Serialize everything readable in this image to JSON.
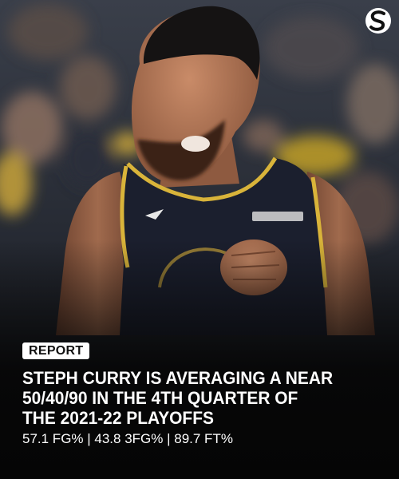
{
  "tag": "REPORT",
  "headline": [
    "STEPH CURRY IS AVERAGING A NEAR",
    "50/40/90 IN THE 4TH QUARTER OF",
    "THE 2021-22 PLAYOFFS"
  ],
  "stats": "57.1 FG% | 43.8 3FG% | 89.7 FT%"
}
